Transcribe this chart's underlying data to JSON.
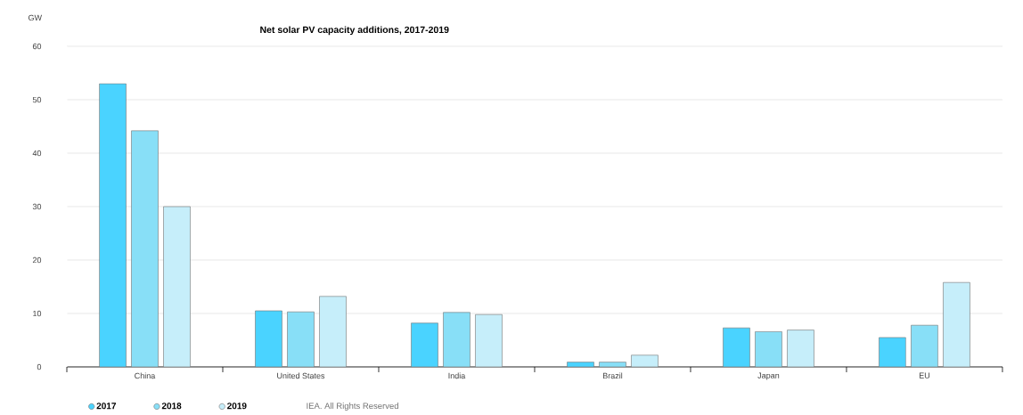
{
  "chart_data": {
    "type": "bar",
    "title": "Net solar PV capacity additions, 2017-2019",
    "ylabel": "GW",
    "categories": [
      "China",
      "United States",
      "India",
      "Brazil",
      "Japan",
      "EU"
    ],
    "series": [
      {
        "name": "2017",
        "color": "#4ad3ff",
        "values": [
          53.0,
          10.5,
          8.2,
          0.9,
          7.3,
          5.5
        ]
      },
      {
        "name": "2018",
        "color": "#88dff7",
        "values": [
          44.2,
          10.3,
          10.2,
          0.9,
          6.6,
          7.8
        ]
      },
      {
        "name": "2019",
        "color": "#c6eefa",
        "values": [
          30.0,
          13.2,
          9.8,
          2.2,
          6.9,
          15.8
        ]
      }
    ],
    "ylim": [
      0,
      60
    ],
    "yticks": [
      0,
      10,
      20,
      30,
      40,
      50,
      60
    ],
    "grid": "y",
    "legend": "bottom left",
    "annotations": [
      "IEA. All Rights Reserved"
    ]
  }
}
